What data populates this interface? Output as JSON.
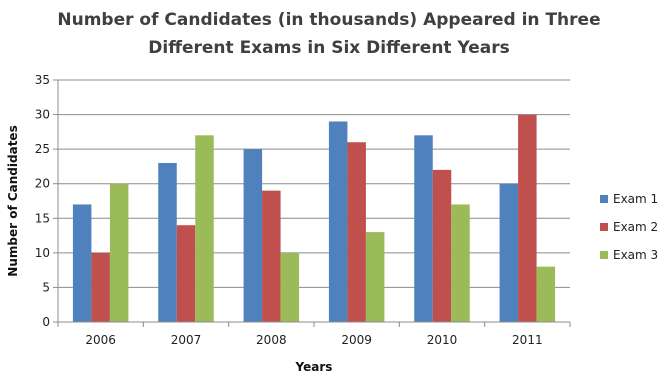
{
  "chart_data": {
    "type": "bar",
    "title_lines": [
      "Number of Candidates (in thousands) Appeared in Three",
      "Different Exams in Six Different Years"
    ],
    "xlabel": "Years",
    "ylabel": "Number of Candidates",
    "categories": [
      "2006",
      "2007",
      "2008",
      "2009",
      "2010",
      "2011"
    ],
    "ylim": [
      0,
      35
    ],
    "yticks": [
      "0",
      "5",
      "10",
      "15",
      "20",
      "25",
      "30",
      "35"
    ],
    "grid": true,
    "legend_position": "right",
    "series": [
      {
        "name": "Exam 1",
        "color": "#4F81BD",
        "values": [
          17,
          23,
          25,
          29,
          27,
          20
        ]
      },
      {
        "name": "Exam 2",
        "color": "#C0504D",
        "values": [
          10,
          14,
          19,
          26,
          22,
          30
        ]
      },
      {
        "name": "Exam 3",
        "color": "#9BBB59",
        "values": [
          20,
          27,
          10,
          13,
          17,
          8
        ]
      }
    ]
  }
}
